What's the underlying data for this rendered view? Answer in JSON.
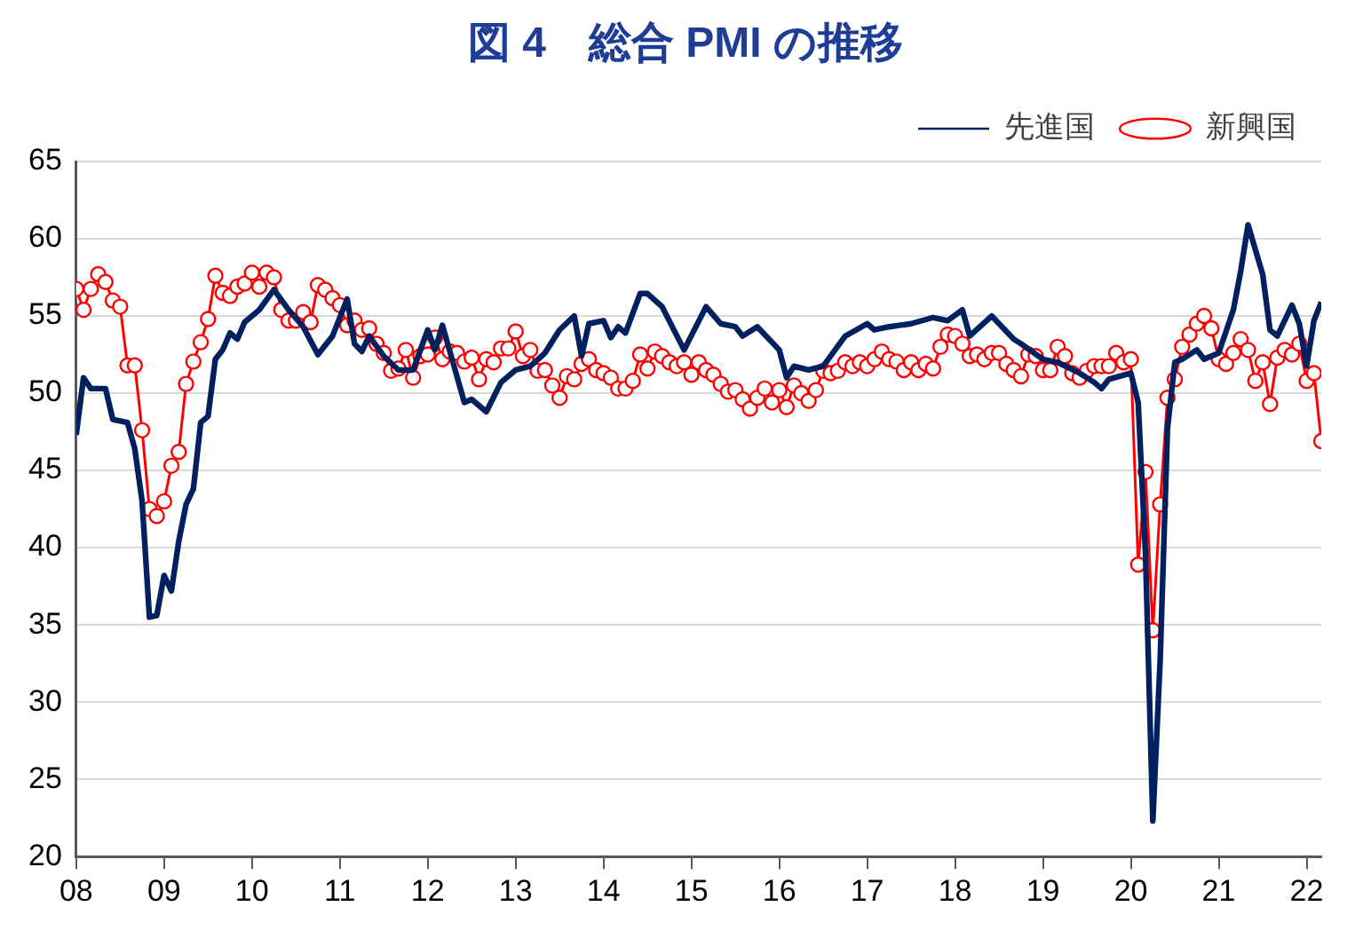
{
  "chart_data": {
    "type": "line",
    "title": "図 4　総合 PMI の推移",
    "xlim": [
      "2008-01",
      "2022-03"
    ],
    "xticks": [
      {
        "value": "2008",
        "label": "08"
      },
      {
        "value": "2009",
        "label": "09"
      },
      {
        "value": "2010",
        "label": "10"
      },
      {
        "value": "2011",
        "label": "11"
      },
      {
        "value": "2012",
        "label": "12"
      },
      {
        "value": "2013",
        "label": "13"
      },
      {
        "value": "2014",
        "label": "14"
      },
      {
        "value": "2015",
        "label": "15"
      },
      {
        "value": "2016",
        "label": "16"
      },
      {
        "value": "2017",
        "label": "17"
      },
      {
        "value": "2018",
        "label": "18"
      },
      {
        "value": "2019",
        "label": "19"
      },
      {
        "value": "2020",
        "label": "20"
      },
      {
        "value": "2021",
        "label": "21"
      },
      {
        "value": "2022",
        "label": "22"
      }
    ],
    "ylim": [
      20,
      65
    ],
    "yticks": [
      20,
      25,
      30,
      35,
      40,
      45,
      50,
      55,
      60,
      65
    ],
    "grid": "y",
    "legend": "top right",
    "series": [
      {
        "name": "先進国",
        "color": "#002060",
        "marker": "none",
        "x": [
          "2008-01",
          "2008-02",
          "2008-03",
          "2008-05",
          "2008-06",
          "2008-08",
          "2008-09",
          "2008-10",
          "2008-11",
          "2008-12",
          "2009-01",
          "2009-02",
          "2009-03",
          "2009-04",
          "2009-05",
          "2009-06",
          "2009-07",
          "2009-08",
          "2009-09",
          "2009-10",
          "2009-11",
          "2009-12",
          "2010-02",
          "2010-04",
          "2010-06",
          "2010-08",
          "2010-10",
          "2010-12",
          "2011-02",
          "2011-03",
          "2011-04",
          "2011-05",
          "2011-07",
          "2011-09",
          "2011-11",
          "2012-01",
          "2012-02",
          "2012-03",
          "2012-06",
          "2012-07",
          "2012-09",
          "2012-11",
          "2013-01",
          "2013-03",
          "2013-05",
          "2013-07",
          "2013-09",
          "2013-10",
          "2013-11",
          "2014-01",
          "2014-02",
          "2014-03",
          "2014-04",
          "2014-06",
          "2014-07",
          "2014-09",
          "2014-12",
          "2015-03",
          "2015-05",
          "2015-07",
          "2015-08",
          "2015-10",
          "2016-01",
          "2016-02",
          "2016-03",
          "2016-05",
          "2016-07",
          "2016-10",
          "2017-01",
          "2017-02",
          "2017-04",
          "2017-07",
          "2017-10",
          "2017-12",
          "2018-02",
          "2018-03",
          "2018-06",
          "2018-09",
          "2018-10",
          "2019-01",
          "2019-03",
          "2019-06",
          "2019-08",
          "2019-09",
          "2019-10",
          "2020-01",
          "2020-02",
          "2020-03",
          "2020-04",
          "2020-05",
          "2020-06",
          "2020-07",
          "2020-08",
          "2020-10",
          "2020-11",
          "2021-01",
          "2021-03",
          "2021-04",
          "2021-05",
          "2021-07",
          "2021-08",
          "2021-09",
          "2021-11",
          "2021-12",
          "2022-01",
          "2022-02",
          "2022-03"
        ],
        "values": [
          47.3,
          51,
          50.3,
          50.3,
          48.3,
          48.1,
          46.4,
          43,
          35.5,
          35.6,
          38.2,
          37.2,
          40.4,
          42.8,
          43.8,
          48.1,
          48.5,
          52.2,
          52.8,
          53.9,
          53.5,
          54.6,
          55.4,
          56.7,
          55.4,
          54.3,
          52.5,
          53.7,
          56.1,
          53.2,
          52.7,
          53.7,
          52.4,
          51.5,
          51.5,
          54.1,
          52.8,
          54.4,
          49.4,
          49.6,
          48.8,
          50.7,
          51.5,
          51.75,
          52.6,
          54.1,
          55,
          52.4,
          54.5,
          54.7,
          53.6,
          54.3,
          53.9,
          56.45,
          56.45,
          55.6,
          52.8,
          55.6,
          54.5,
          54.3,
          53.7,
          54.3,
          52.8,
          51,
          51.75,
          51.5,
          51.75,
          53.7,
          54.5,
          54.1,
          54.3,
          54.5,
          54.9,
          54.7,
          55.4,
          53.7,
          55,
          53.5,
          53.2,
          52.2,
          52,
          51.3,
          50.7,
          50.3,
          50.9,
          51.3,
          49.4,
          39.6,
          22.3,
          32.7,
          47.7,
          52,
          52.2,
          52.8,
          52.2,
          52.6,
          55.4,
          57.9,
          60.9,
          57.7,
          54.1,
          53.7,
          55.7,
          54.5,
          51.75,
          54.7,
          55.9
        ]
      },
      {
        "name": "新興国",
        "color": "#ff0000",
        "marker": "circle",
        "x": [
          "2008-01",
          "2008-02",
          "2008-03",
          "2008-04",
          "2008-05",
          "2008-06",
          "2008-07",
          "2008-08",
          "2008-09",
          "2008-10",
          "2008-11",
          "2008-12",
          "2009-01",
          "2009-02",
          "2009-03",
          "2009-04",
          "2009-05",
          "2009-06",
          "2009-07",
          "2009-08",
          "2009-09",
          "2009-10",
          "2009-11",
          "2009-12",
          "2010-01",
          "2010-02",
          "2010-03",
          "2010-04",
          "2010-05",
          "2010-06",
          "2010-07",
          "2010-08",
          "2010-09",
          "2010-10",
          "2010-11",
          "2010-12",
          "2011-01",
          "2011-02",
          "2011-03",
          "2011-04",
          "2011-05",
          "2011-06",
          "2011-07",
          "2011-08",
          "2011-09",
          "2011-10",
          "2011-11",
          "2011-12",
          "2012-01",
          "2012-02",
          "2012-03",
          "2012-04",
          "2012-05",
          "2012-06",
          "2012-07",
          "2012-08",
          "2012-09",
          "2012-10",
          "2012-11",
          "2012-12",
          "2013-01",
          "2013-02",
          "2013-03",
          "2013-04",
          "2013-05",
          "2013-06",
          "2013-07",
          "2013-08",
          "2013-09",
          "2013-10",
          "2013-11",
          "2013-12",
          "2014-01",
          "2014-02",
          "2014-03",
          "2014-04",
          "2014-05",
          "2014-06",
          "2014-07",
          "2014-08",
          "2014-09",
          "2014-10",
          "2014-11",
          "2014-12",
          "2015-01",
          "2015-02",
          "2015-03",
          "2015-04",
          "2015-05",
          "2015-06",
          "2015-07",
          "2015-08",
          "2015-09",
          "2015-10",
          "2015-11",
          "2015-12",
          "2016-01",
          "2016-02",
          "2016-03",
          "2016-04",
          "2016-05",
          "2016-06",
          "2016-07",
          "2016-08",
          "2016-09",
          "2016-10",
          "2016-11",
          "2016-12",
          "2017-01",
          "2017-02",
          "2017-03",
          "2017-04",
          "2017-05",
          "2017-06",
          "2017-07",
          "2017-08",
          "2017-09",
          "2017-10",
          "2017-11",
          "2017-12",
          "2018-01",
          "2018-02",
          "2018-03",
          "2018-04",
          "2018-05",
          "2018-06",
          "2018-07",
          "2018-08",
          "2018-09",
          "2018-10",
          "2018-11",
          "2018-12",
          "2019-01",
          "2019-02",
          "2019-03",
          "2019-04",
          "2019-05",
          "2019-06",
          "2019-07",
          "2019-08",
          "2019-09",
          "2019-10",
          "2019-11",
          "2019-12",
          "2020-01",
          "2020-02",
          "2020-03",
          "2020-04",
          "2020-05",
          "2020-06",
          "2020-07",
          "2020-08",
          "2020-09",
          "2020-10",
          "2020-11",
          "2020-12",
          "2021-01",
          "2021-02",
          "2021-03",
          "2021-04",
          "2021-05",
          "2021-06",
          "2021-07",
          "2021-08",
          "2021-09",
          "2021-10",
          "2021-11",
          "2021-12",
          "2022-01",
          "2022-02",
          "2022-03"
        ],
        "values": [
          56.75,
          55.4,
          56.75,
          57.7,
          57.2,
          56,
          55.6,
          51.8,
          51.8,
          47.6,
          42.5,
          42.05,
          43,
          45.3,
          46.2,
          50.6,
          52.05,
          53.3,
          54.8,
          57.6,
          56.5,
          56.3,
          56.9,
          57.1,
          57.8,
          56.9,
          57.8,
          57.5,
          55.4,
          54.7,
          54.7,
          55.25,
          54.6,
          57,
          56.7,
          56.15,
          55.7,
          54.4,
          54.7,
          54.1,
          54.2,
          53.2,
          52.6,
          51.45,
          51.6,
          52.8,
          51,
          52.4,
          52.5,
          53.6,
          52.2,
          52.7,
          52.6,
          52.05,
          52.3,
          50.9,
          52.2,
          52,
          52.9,
          52.9,
          54,
          52.4,
          52.8,
          51.45,
          51.5,
          50.5,
          49.7,
          51.1,
          50.9,
          51.9,
          52.2,
          51.5,
          51.3,
          51,
          50.3,
          50.3,
          50.8,
          52.5,
          51.6,
          52.7,
          52.4,
          52,
          51.75,
          52,
          51.2,
          52,
          51.5,
          51.2,
          50.6,
          50.1,
          50.2,
          49.6,
          49,
          49.7,
          50.3,
          49.4,
          50.2,
          49.1,
          50.5,
          50,
          49.5,
          50.2,
          51.45,
          51.3,
          51.45,
          52,
          51.75,
          52,
          51.75,
          52.2,
          52.7,
          52.2,
          52.05,
          51.5,
          52,
          51.5,
          51.9,
          51.6,
          53,
          53.8,
          53.7,
          53.2,
          52.4,
          52.5,
          52.2,
          52.6,
          52.6,
          51.9,
          51.5,
          51.1,
          52.5,
          52.4,
          51.5,
          51.5,
          53,
          52.4,
          51.3,
          51,
          51.45,
          51.75,
          51.75,
          51.75,
          52.6,
          52,
          52.2,
          38.9,
          44.9,
          34.65,
          42.8,
          49.7,
          50.9,
          53,
          53.8,
          54.5,
          55,
          54.2,
          52.2,
          51.9,
          52.6,
          53.5,
          52.8,
          50.8,
          52,
          49.3,
          52.3,
          52.8,
          52.5,
          53.2,
          50.8,
          51.3,
          46.9
        ]
      }
    ]
  }
}
